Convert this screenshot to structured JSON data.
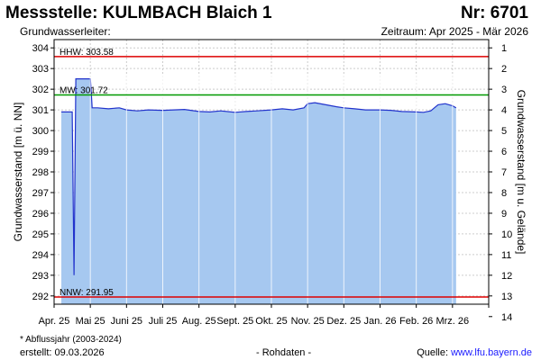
{
  "header": {
    "title": "Messstelle: KULMBACH Blaich 1",
    "number": "Nr: 6701",
    "subtitle_left": "Grundwasserleiter:",
    "subtitle_right": "Zeitraum: Apr 2025 - Mär 2026"
  },
  "footer": {
    "note": "* Abflussjahr (2003-2024)",
    "created": "erstellt:  09.03.2026",
    "raw": "- Rohdaten -",
    "source_label": "Quelle: ",
    "source_url": "www.lfu.bayern.de"
  },
  "colors": {
    "fill": "#a6c8f0",
    "line": "#2233cc",
    "red": "#dd0000",
    "green": "#009900",
    "grid": "#cccccc",
    "month_line": "#ffffff"
  },
  "chart_data": {
    "type": "area",
    "ylabel_left": "Grundwasserstand [m ü. NN]",
    "ylabel_right": "Grundwasserstand [m u. Gelände]",
    "ylim": [
      291.6,
      304.4
    ],
    "yticks_left": [
      304,
      303,
      302,
      301,
      300,
      299,
      298,
      297,
      296,
      295,
      294,
      293,
      292
    ],
    "yticks_right": [
      1,
      2,
      3,
      4,
      5,
      6,
      7,
      8,
      9,
      10,
      11,
      12,
      13,
      14
    ],
    "right_axis_offset": 305,
    "x_categories": [
      "Apr. 25",
      "Mai 25",
      "Juni 25",
      "Juli 25",
      "Aug. 25",
      "Sept. 25",
      "Okt. 25",
      "Nov. 25",
      "Dez. 25",
      "Jan. 26",
      "Feb. 26",
      "Mrz. 26"
    ],
    "reference_lines": [
      {
        "label": "HHW: 303.58",
        "value": 303.58,
        "color": "red"
      },
      {
        "label": "MW: 301.72",
        "value": 301.72,
        "color": "green"
      },
      {
        "label": "NNW: 291.95",
        "value": 291.95,
        "color": "red"
      }
    ],
    "series": [
      {
        "x_months": [
          0.2,
          0.35,
          0.5,
          0.55,
          0.6,
          0.62,
          0.68,
          1.0,
          1.02,
          1.05,
          1.2,
          1.5,
          1.8,
          2.0,
          2.3,
          2.6,
          3.0,
          3.3,
          3.6,
          4.0,
          4.3,
          4.6,
          5.0,
          5.3,
          5.6,
          6.0,
          6.3,
          6.6,
          6.9,
          7.0,
          7.2,
          7.5,
          7.8,
          8.0,
          8.3,
          8.6,
          9.0,
          9.3,
          9.6,
          10.0,
          10.2,
          10.4,
          10.6,
          10.8,
          11.0,
          11.1
        ],
        "values": [
          300.9,
          300.9,
          300.9,
          293.0,
          302.5,
          302.5,
          302.5,
          302.5,
          302.0,
          301.1,
          301.1,
          301.05,
          301.1,
          301.0,
          300.95,
          301.0,
          300.98,
          301.0,
          301.02,
          300.92,
          300.9,
          300.95,
          300.88,
          300.92,
          300.95,
          301.0,
          301.05,
          301.0,
          301.1,
          301.3,
          301.35,
          301.25,
          301.15,
          301.1,
          301.05,
          301.0,
          301.0,
          300.98,
          300.92,
          300.9,
          300.88,
          300.95,
          301.25,
          301.3,
          301.2,
          301.1
        ]
      }
    ]
  }
}
